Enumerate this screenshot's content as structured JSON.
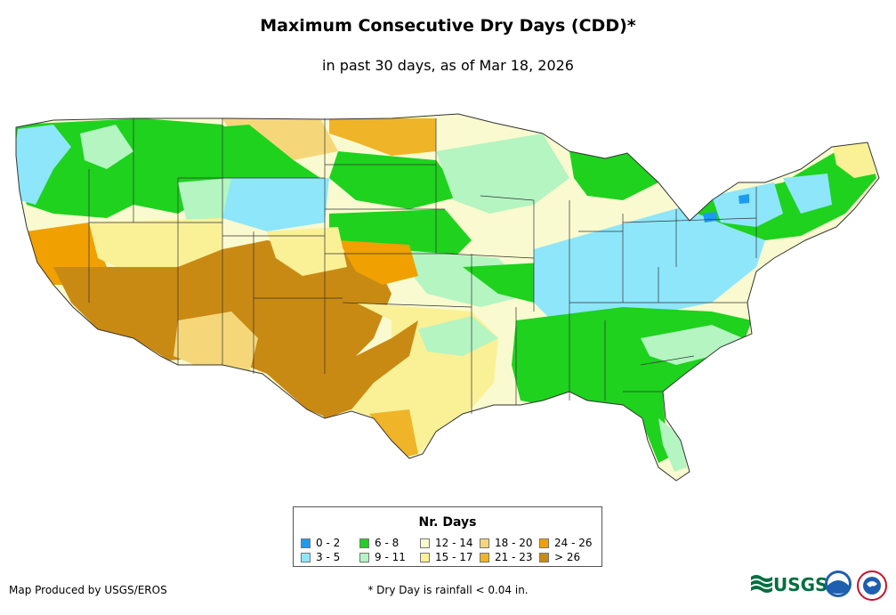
{
  "header": {
    "title": "Maximum Consecutive Dry Days (CDD)*",
    "subtitle": "in past 30 days, as of Mar 18, 2026"
  },
  "legend": {
    "title": "Nr. Days",
    "items": [
      {
        "label": "0 - 2",
        "color": "#1E9BF0"
      },
      {
        "label": "3 - 5",
        "color": "#8EE6FA"
      },
      {
        "label": "6 - 8",
        "color": "#1ED21E"
      },
      {
        "label": "9 - 11",
        "color": "#B4F5C2"
      },
      {
        "label": "12 - 14",
        "color": "#FAFAD0"
      },
      {
        "label": "15 - 17",
        "color": "#FAF096"
      },
      {
        "label": "18 - 20",
        "color": "#F5D77A"
      },
      {
        "label": "21 - 23",
        "color": "#F0B428"
      },
      {
        "label": "24 - 26",
        "color": "#F0A000"
      },
      {
        "label": "> 26",
        "color": "#C98A14"
      }
    ]
  },
  "footer": {
    "credit": "Map Produced by USGS/EROS",
    "footnote": "* Dry Day is rainfall < 0.04 in.",
    "logo_usgs": "USGS"
  },
  "icons": [
    "usgs-logo",
    "noaa-logo",
    "nws-logo"
  ]
}
